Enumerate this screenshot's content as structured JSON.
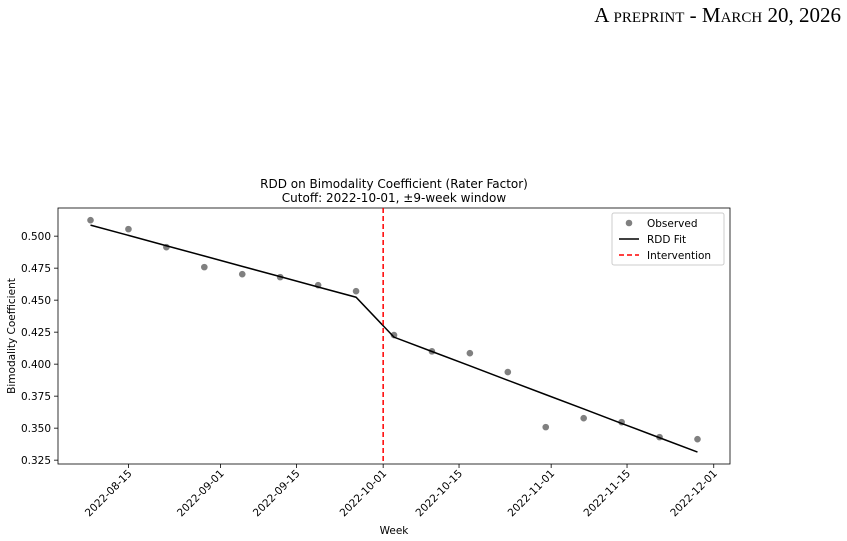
{
  "header": {
    "running_title": "A preprint - March 20, 2026"
  },
  "chart_data": {
    "type": "scatter",
    "title": "RDD on Bimodality Coefficient (Rater Factor)",
    "subtitle": "Cutoff: 2022-10-01, ±9-week window",
    "x_label": "Week",
    "y_label": "Bimodality Coefficient",
    "x": [
      "2022-08-08",
      "2022-08-15",
      "2022-08-22",
      "2022-08-29",
      "2022-09-05",
      "2022-09-12",
      "2022-09-19",
      "2022-09-26",
      "2022-10-03",
      "2022-10-10",
      "2022-10-17",
      "2022-10-24",
      "2022-10-31",
      "2022-11-07",
      "2022-11-14",
      "2022-11-21",
      "2022-11-28"
    ],
    "series": [
      {
        "name": "Observed",
        "type": "scatter",
        "color": "#808080",
        "values": [
          0.5125,
          0.5055,
          0.4914,
          0.4758,
          0.4703,
          0.468,
          0.4617,
          0.457,
          0.4227,
          0.41,
          0.4086,
          0.3938,
          0.3508,
          0.3578,
          0.3547,
          0.343,
          0.3414
        ]
      },
      {
        "name": "RDD Fit",
        "type": "line",
        "color": "#000000",
        "values": [
          0.5086,
          0.5006,
          0.4925,
          0.4845,
          0.4764,
          0.4684,
          0.4603,
          0.4523,
          0.4211,
          0.4099,
          0.3987,
          0.3874,
          0.3762,
          0.365,
          0.3537,
          0.3425,
          0.3313
        ]
      },
      {
        "name": "Intervention",
        "type": "vline",
        "color": "#ff0000",
        "x": "2022-10-01"
      }
    ],
    "xlim": [
      "2022-08-02",
      "2022-12-04"
    ],
    "xticks": [
      "2022-08-15",
      "2022-09-01",
      "2022-09-15",
      "2022-10-01",
      "2022-10-15",
      "2022-11-01",
      "2022-11-15",
      "2022-12-01"
    ],
    "ylim": [
      0.322,
      0.522
    ],
    "yticks": [
      0.325,
      {
        "value": 0.35,
        "label": "0.350"
      },
      0.375,
      {
        "value": 0.4,
        "label": "0.400"
      },
      0.425,
      {
        "value": 0.45,
        "label": "0.450"
      },
      0.475,
      {
        "value": 0.5,
        "label": "0.500"
      }
    ],
    "legend": "upper right",
    "grid": false
  }
}
